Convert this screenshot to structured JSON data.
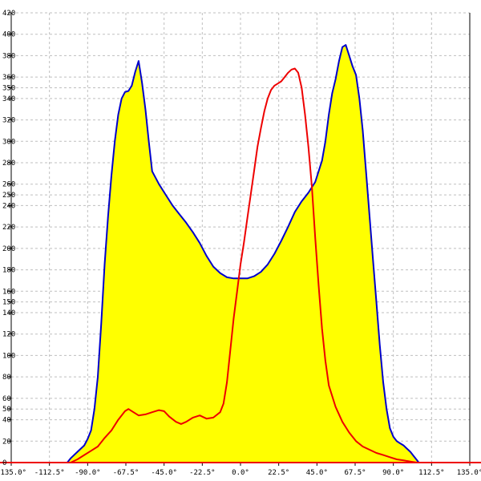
{
  "chart_data": {
    "type": "area",
    "title": "",
    "xlabel": "",
    "ylabel": "",
    "x_unit": "°",
    "xlim": [
      -135,
      135
    ],
    "ylim": [
      0,
      420
    ],
    "grid": true,
    "x_ticks": [
      -135,
      -112.5,
      -90,
      -67.5,
      -45,
      -22.5,
      0,
      22.5,
      45,
      67.5,
      90,
      112.5,
      135
    ],
    "x_tick_labels": [
      "-135.0°",
      "-112.5°",
      "-90.0°",
      "-67.5°",
      "-45.0°",
      "-22.5°",
      "0.0°",
      "22.5°",
      "45.0°",
      "67.5°",
      "90.0°",
      "112.5°",
      "135.0°"
    ],
    "y_ticks": [
      20,
      40,
      50,
      60,
      80,
      100,
      120,
      140,
      150,
      160,
      180,
      200,
      220,
      240,
      250,
      260,
      280,
      300,
      320,
      340,
      350,
      360,
      380,
      400,
      420
    ],
    "y_tick_labels": [
      "20",
      "40",
      "50",
      "60",
      "80",
      "100",
      "120",
      "140",
      "150",
      "160",
      "180",
      "200",
      "220",
      "240",
      "250",
      "260",
      "280",
      "300",
      "320",
      "340",
      "350",
      "360",
      "380",
      "400",
      "420"
    ],
    "series": [
      {
        "name": "",
        "style": "filled-area",
        "line_color": "#0000cc",
        "fill_color": "#ffff00",
        "points": [
          [
            -102,
            0
          ],
          [
            -100,
            4
          ],
          [
            -96,
            10
          ],
          [
            -92,
            16
          ],
          [
            -90,
            22
          ],
          [
            -88,
            30
          ],
          [
            -86,
            50
          ],
          [
            -84,
            80
          ],
          [
            -82,
            130
          ],
          [
            -80,
            185
          ],
          [
            -78,
            230
          ],
          [
            -76,
            268
          ],
          [
            -74,
            300
          ],
          [
            -72,
            325
          ],
          [
            -70,
            340
          ],
          [
            -68,
            346
          ],
          [
            -66,
            347
          ],
          [
            -64,
            352
          ],
          [
            -62,
            365
          ],
          [
            -60,
            375
          ],
          [
            -58,
            355
          ],
          [
            -56,
            330
          ],
          [
            -54,
            300
          ],
          [
            -52,
            272
          ],
          [
            -48,
            260
          ],
          [
            -44,
            250
          ],
          [
            -40,
            240
          ],
          [
            -36,
            232
          ],
          [
            -32,
            224
          ],
          [
            -28,
            215
          ],
          [
            -24,
            205
          ],
          [
            -20,
            193
          ],
          [
            -16,
            183
          ],
          [
            -12,
            177
          ],
          [
            -8,
            173
          ],
          [
            -4,
            172
          ],
          [
            0,
            172
          ],
          [
            4,
            172
          ],
          [
            8,
            174
          ],
          [
            12,
            178
          ],
          [
            16,
            185
          ],
          [
            20,
            195
          ],
          [
            24,
            207
          ],
          [
            28,
            220
          ],
          [
            32,
            234
          ],
          [
            36,
            244
          ],
          [
            40,
            252
          ],
          [
            44,
            262
          ],
          [
            48,
            282
          ],
          [
            50,
            300
          ],
          [
            52,
            325
          ],
          [
            54,
            345
          ],
          [
            56,
            358
          ],
          [
            58,
            375
          ],
          [
            60,
            388
          ],
          [
            62,
            390
          ],
          [
            64,
            380
          ],
          [
            66,
            370
          ],
          [
            68,
            362
          ],
          [
            70,
            340
          ],
          [
            72,
            310
          ],
          [
            74,
            270
          ],
          [
            76,
            230
          ],
          [
            78,
            190
          ],
          [
            80,
            150
          ],
          [
            82,
            110
          ],
          [
            84,
            75
          ],
          [
            86,
            50
          ],
          [
            88,
            32
          ],
          [
            90,
            24
          ],
          [
            92,
            20
          ],
          [
            94,
            18
          ],
          [
            96,
            16
          ],
          [
            98,
            13
          ],
          [
            100,
            10
          ],
          [
            102,
            6
          ],
          [
            104,
            2
          ],
          [
            105,
            0
          ]
        ]
      },
      {
        "name": "",
        "style": "line",
        "line_color": "#ee0000",
        "points": [
          [
            -100,
            0
          ],
          [
            -96,
            3
          ],
          [
            -92,
            7
          ],
          [
            -88,
            11
          ],
          [
            -84,
            15
          ],
          [
            -80,
            23
          ],
          [
            -76,
            30
          ],
          [
            -72,
            40
          ],
          [
            -68,
            48
          ],
          [
            -66,
            50
          ],
          [
            -63,
            47
          ],
          [
            -60,
            44
          ],
          [
            -56,
            45
          ],
          [
            -52,
            47
          ],
          [
            -48,
            49
          ],
          [
            -45,
            48
          ],
          [
            -42,
            43
          ],
          [
            -38,
            38
          ],
          [
            -35,
            36
          ],
          [
            -32,
            38
          ],
          [
            -28,
            42
          ],
          [
            -24,
            44
          ],
          [
            -20,
            41
          ],
          [
            -16,
            42
          ],
          [
            -12,
            47
          ],
          [
            -10,
            55
          ],
          [
            -8,
            75
          ],
          [
            -6,
            105
          ],
          [
            -4,
            135
          ],
          [
            -2,
            160
          ],
          [
            0,
            185
          ],
          [
            2,
            205
          ],
          [
            4,
            228
          ],
          [
            6,
            250
          ],
          [
            8,
            272
          ],
          [
            10,
            295
          ],
          [
            12,
            312
          ],
          [
            14,
            328
          ],
          [
            16,
            340
          ],
          [
            18,
            348
          ],
          [
            20,
            352
          ],
          [
            22,
            354
          ],
          [
            24,
            356
          ],
          [
            26,
            360
          ],
          [
            28,
            364
          ],
          [
            30,
            367
          ],
          [
            32,
            368
          ],
          [
            34,
            364
          ],
          [
            36,
            350
          ],
          [
            38,
            325
          ],
          [
            40,
            295
          ],
          [
            42,
            258
          ],
          [
            44,
            210
          ],
          [
            46,
            165
          ],
          [
            48,
            125
          ],
          [
            50,
            95
          ],
          [
            52,
            72
          ],
          [
            56,
            52
          ],
          [
            60,
            38
          ],
          [
            64,
            28
          ],
          [
            68,
            20
          ],
          [
            72,
            15
          ],
          [
            76,
            12
          ],
          [
            80,
            9
          ],
          [
            84,
            7
          ],
          [
            88,
            5
          ],
          [
            92,
            3
          ],
          [
            96,
            2
          ],
          [
            100,
            1
          ],
          [
            104,
            0
          ]
        ]
      }
    ]
  }
}
